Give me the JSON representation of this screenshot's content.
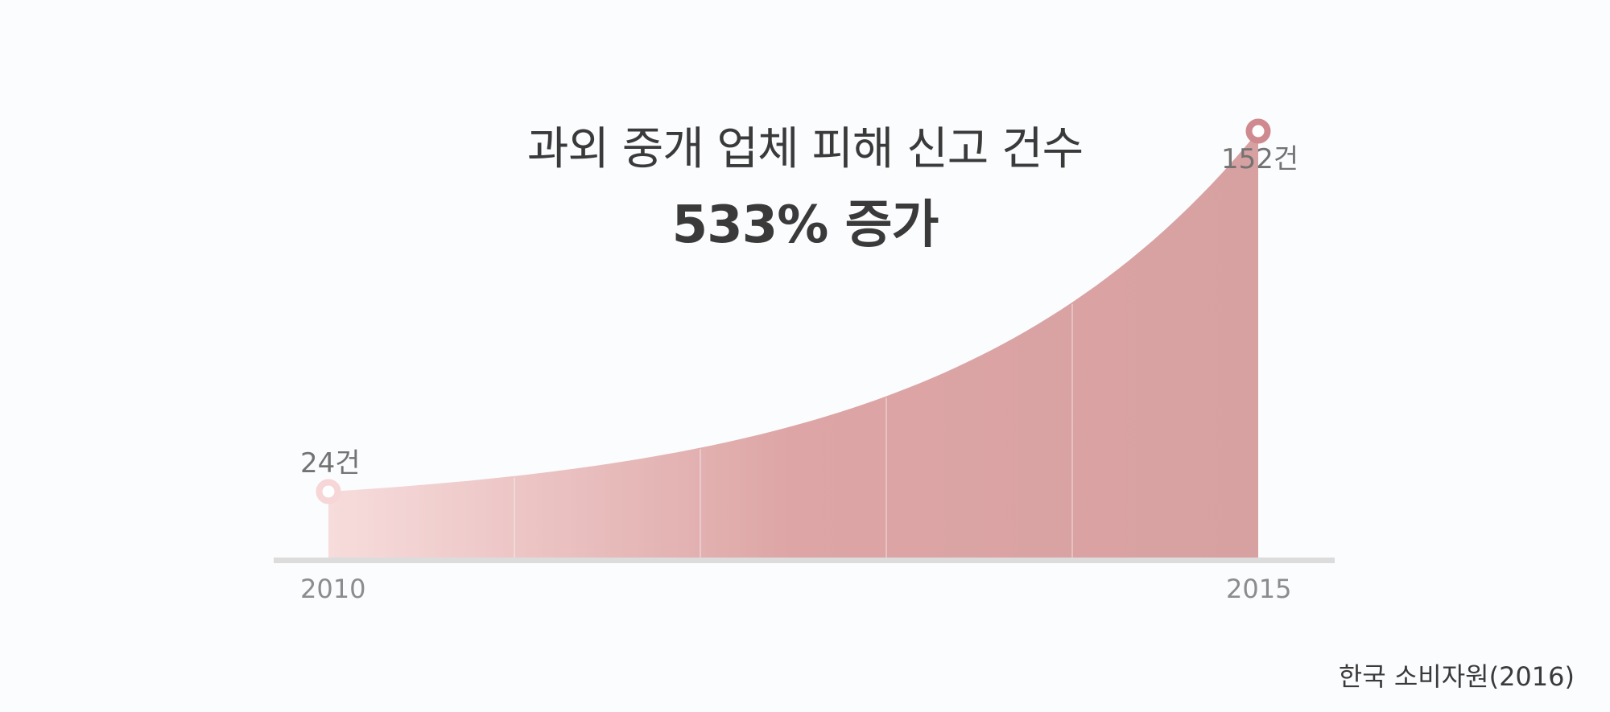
{
  "chart_data": {
    "type": "area",
    "title": "과외 중개 업체 피해 신고 건수",
    "subtitle": "533% 증가",
    "x": [
      2010,
      2015
    ],
    "values": [
      24,
      152
    ],
    "data_labels": [
      "24건",
      "152건"
    ],
    "x_tick_labels": [
      "2010",
      "2015"
    ],
    "source": "한국 소비자원(2016)",
    "grid": false,
    "colors": {
      "fill_start": "#f7dcdc",
      "fill_end": "#d8a1a1",
      "marker_start": "#f6d6d6",
      "marker_end": "#cf8a8f",
      "baseline": "#dcdcdc"
    }
  }
}
